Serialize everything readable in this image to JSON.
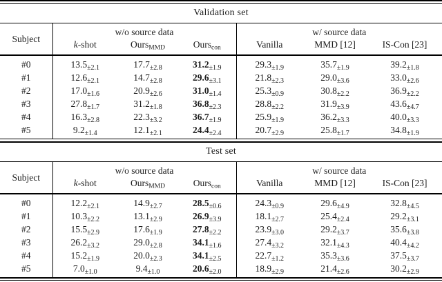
{
  "page": {
    "background": "#ffffff",
    "text_color": "#1b1b1b",
    "rule_color": "#000000"
  },
  "tables": [
    {
      "title": "Validation set",
      "header": {
        "subject_label": "Subject",
        "groups": [
          {
            "label": "w/o source data"
          },
          {
            "label": "w/ source data"
          }
        ],
        "columns": [
          {
            "name": "k-shot",
            "italic": "k",
            "text": "-shot",
            "sub": ""
          },
          {
            "name": "ours-mmd",
            "italic": "",
            "text": "Ours",
            "sub": "MMD"
          },
          {
            "name": "ours-con",
            "italic": "",
            "text": "Ours",
            "sub": "con"
          },
          {
            "name": "vanilla",
            "italic": "",
            "text": "Vanilla",
            "sub": ""
          },
          {
            "name": "mmd",
            "italic": "",
            "text": "MMD [12]",
            "sub": ""
          },
          {
            "name": "is-con",
            "italic": "",
            "text": "IS-Con [23]",
            "sub": ""
          }
        ]
      },
      "bold_column_index": 2,
      "rows": [
        {
          "subject": "#0",
          "cells": [
            {
              "v": "13.5",
              "e": "±2.1"
            },
            {
              "v": "17.7",
              "e": "±2.8"
            },
            {
              "v": "31.2",
              "e": "±1.9"
            },
            {
              "v": "29.3",
              "e": "±1.9"
            },
            {
              "v": "35.7",
              "e": "±1.9"
            },
            {
              "v": "39.2",
              "e": "±1.8"
            }
          ]
        },
        {
          "subject": "#1",
          "cells": [
            {
              "v": "12.6",
              "e": "±2.1"
            },
            {
              "v": "14.7",
              "e": "±2.8"
            },
            {
              "v": "29.6",
              "e": "±3.1"
            },
            {
              "v": "21.8",
              "e": "±2.3"
            },
            {
              "v": "29.0",
              "e": "±3.6"
            },
            {
              "v": "33.0",
              "e": "±2.6"
            }
          ]
        },
        {
          "subject": "#2",
          "cells": [
            {
              "v": "17.0",
              "e": "±1.6"
            },
            {
              "v": "20.9",
              "e": "±2.6"
            },
            {
              "v": "31.0",
              "e": "±1.4"
            },
            {
              "v": "25.3",
              "e": "±0.9"
            },
            {
              "v": "30.8",
              "e": "±2.2"
            },
            {
              "v": "36.9",
              "e": "±2.2"
            }
          ]
        },
        {
          "subject": "#3",
          "cells": [
            {
              "v": "27.8",
              "e": "±1.7"
            },
            {
              "v": "31.2",
              "e": "±1.8"
            },
            {
              "v": "36.8",
              "e": "±2.3"
            },
            {
              "v": "28.8",
              "e": "±2.2"
            },
            {
              "v": "31.9",
              "e": "±3.9"
            },
            {
              "v": "43.6",
              "e": "±4.7"
            }
          ]
        },
        {
          "subject": "#4",
          "cells": [
            {
              "v": "16.3",
              "e": "±2.8"
            },
            {
              "v": "22.3",
              "e": "±3.2"
            },
            {
              "v": "36.7",
              "e": "±1.9"
            },
            {
              "v": "25.9",
              "e": "±1.9"
            },
            {
              "v": "36.2",
              "e": "±3.3"
            },
            {
              "v": "40.0",
              "e": "±3.3"
            }
          ]
        },
        {
          "subject": "#5",
          "cells": [
            {
              "v": "9.2",
              "e": "±1.4"
            },
            {
              "v": "12.1",
              "e": "±2.1"
            },
            {
              "v": "24.4",
              "e": "±2.4"
            },
            {
              "v": "20.7",
              "e": "±2.9"
            },
            {
              "v": "25.8",
              "e": "±1.7"
            },
            {
              "v": "34.8",
              "e": "±1.9"
            }
          ]
        }
      ]
    },
    {
      "title": "Test set",
      "header": {
        "subject_label": "Subject",
        "groups": [
          {
            "label": "w/o source data"
          },
          {
            "label": "w/ source data"
          }
        ],
        "columns": [
          {
            "name": "k-shot",
            "italic": "k",
            "text": "-shot",
            "sub": ""
          },
          {
            "name": "ours-mmd",
            "italic": "",
            "text": "Ours",
            "sub": "MMD"
          },
          {
            "name": "ours-con",
            "italic": "",
            "text": "Ours",
            "sub": "con"
          },
          {
            "name": "vanilla",
            "italic": "",
            "text": "Vanilla",
            "sub": ""
          },
          {
            "name": "mmd",
            "italic": "",
            "text": "MMD [12]",
            "sub": ""
          },
          {
            "name": "is-con",
            "italic": "",
            "text": "IS-Con [23]",
            "sub": ""
          }
        ]
      },
      "bold_column_index": 2,
      "rows": [
        {
          "subject": "#0",
          "cells": [
            {
              "v": "12.2",
              "e": "±2.1"
            },
            {
              "v": "14.9",
              "e": "±2.7"
            },
            {
              "v": "28.5",
              "e": "±0.6"
            },
            {
              "v": "24.3",
              "e": "±0.9"
            },
            {
              "v": "29.6",
              "e": "±4.9"
            },
            {
              "v": "32.8",
              "e": "±4.5"
            }
          ]
        },
        {
          "subject": "#1",
          "cells": [
            {
              "v": "10.3",
              "e": "±2.2"
            },
            {
              "v": "13.1",
              "e": "±2.9"
            },
            {
              "v": "26.9",
              "e": "±3.9"
            },
            {
              "v": "18.1",
              "e": "±2.7"
            },
            {
              "v": "25.4",
              "e": "±2.4"
            },
            {
              "v": "29.2",
              "e": "±3.1"
            }
          ]
        },
        {
          "subject": "#2",
          "cells": [
            {
              "v": "15.5",
              "e": "±2.9"
            },
            {
              "v": "17.6",
              "e": "±1.9"
            },
            {
              "v": "27.8",
              "e": "±2.2"
            },
            {
              "v": "23.9",
              "e": "±3.0"
            },
            {
              "v": "29.2",
              "e": "±3.7"
            },
            {
              "v": "35.6",
              "e": "±3.8"
            }
          ]
        },
        {
          "subject": "#3",
          "cells": [
            {
              "v": "26.2",
              "e": "±3.2"
            },
            {
              "v": "29.0",
              "e": "±2.8"
            },
            {
              "v": "34.1",
              "e": "±1.6"
            },
            {
              "v": "27.4",
              "e": "±3.2"
            },
            {
              "v": "32.1",
              "e": "±4.3"
            },
            {
              "v": "40.4",
              "e": "±4.2"
            }
          ]
        },
        {
          "subject": "#4",
          "cells": [
            {
              "v": "15.2",
              "e": "±1.9"
            },
            {
              "v": "20.0",
              "e": "±2.3"
            },
            {
              "v": "34.1",
              "e": "±2.5"
            },
            {
              "v": "22.7",
              "e": "±1.2"
            },
            {
              "v": "35.3",
              "e": "±3.6"
            },
            {
              "v": "37.5",
              "e": "±3.7"
            }
          ]
        },
        {
          "subject": "#5",
          "cells": [
            {
              "v": "7.0",
              "e": "±1.0"
            },
            {
              "v": "9.4",
              "e": "±1.0"
            },
            {
              "v": "20.6",
              "e": "±2.0"
            },
            {
              "v": "18.9",
              "e": "±2.9"
            },
            {
              "v": "21.4",
              "e": "±2.6"
            },
            {
              "v": "30.2",
              "e": "±2.9"
            }
          ]
        }
      ]
    }
  ]
}
